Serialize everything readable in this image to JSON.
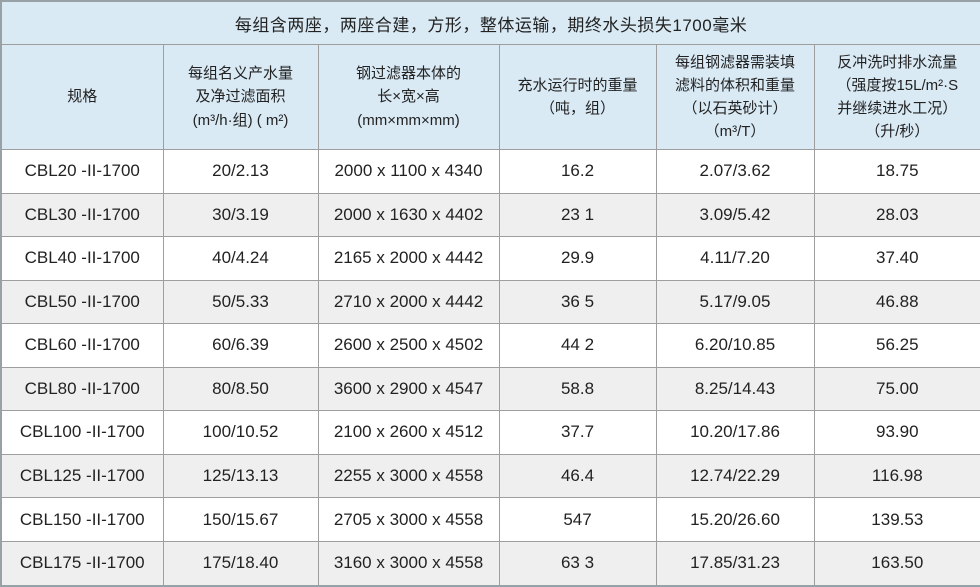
{
  "caption": "每组含两座，两座合建，方形，整体运输，期终水头损失1700毫米",
  "table": {
    "headers": [
      "规格",
      "每组名义产水量\n及净过滤面积\n(m³/h·组) ( m²)",
      "钢过滤器本体的\n长×宽×高\n(mm×mm×mm)",
      "充水运行时的重量\n（吨，组）",
      "每组钢滤器需装填\n滤料的体积和重量\n（以石英砂计）\n（m³/T）",
      "反冲洗时排水流量\n（强度按15L/m²·S\n并继续进水工况）\n（升/秒）"
    ],
    "rows": [
      [
        "CBL20 -II-1700",
        "20/2.13",
        "2000 x 1100 x 4340",
        "16.2",
        "2.07/3.62",
        "18.75"
      ],
      [
        "CBL30 -II-1700",
        "30/3.19",
        "2000 x 1630 x 4402",
        "23 1",
        "3.09/5.42",
        "28.03"
      ],
      [
        "CBL40 -II-1700",
        "40/4.24",
        "2165 x 2000 x 4442",
        "29.9",
        "4.11/7.20",
        "37.40"
      ],
      [
        "CBL50 -II-1700",
        "50/5.33",
        "2710 x 2000 x 4442",
        "36 5",
        "5.17/9.05",
        "46.88"
      ],
      [
        "CBL60 -II-1700",
        "60/6.39",
        "2600 x 2500 x 4502",
        "44 2",
        "6.20/10.85",
        "56.25"
      ],
      [
        "CBL80 -II-1700",
        "80/8.50",
        "3600 x 2900 x 4547",
        "58.8",
        "8.25/14.43",
        "75.00"
      ],
      [
        "CBL100 -II-1700",
        "100/10.52",
        "2100 x 2600 x 4512",
        "37.7",
        "10.20/17.86",
        "93.90"
      ],
      [
        "CBL125 -II-1700",
        "125/13.13",
        "2255 x 3000 x 4558",
        "46.4",
        "12.74/22.29",
        "116.98"
      ],
      [
        "CBL150 -II-1700",
        "150/15.67",
        "2705 x 3000 x 4558",
        "547",
        "15.20/26.60",
        "139.53"
      ],
      [
        "CBL175 -II-1700",
        "175/18.40",
        "3160 x 3000 x 4558",
        "63 3",
        "17.85/31.23",
        "163.50"
      ]
    ]
  },
  "colors": {
    "header_bg": "#d9eaf5",
    "row_bg": "#ffffff",
    "row_alt_bg": "#efefef",
    "border_inner": "#9e9e9e",
    "border_outer": "#98a1a6",
    "text": "#222222"
  }
}
